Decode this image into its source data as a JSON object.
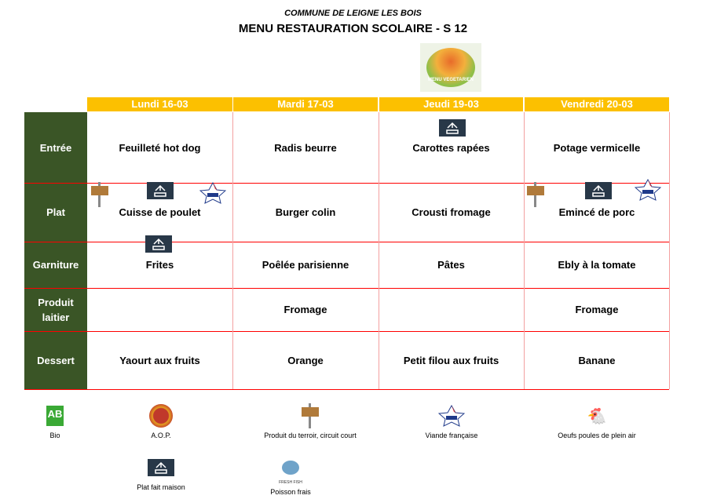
{
  "header": {
    "commune": "COMMUNE DE LEIGNE LES BOIS",
    "title": "MENU RESTAURATION SCOLAIRE -  S 12",
    "vegetarian_badge": "MENU VEGETARIEN"
  },
  "days": [
    "Lundi 16-03",
    "Mardi 17-03",
    "Jeudi 19-03",
    "Vendredi  20-03"
  ],
  "colors": {
    "day_header": "#fcc000",
    "row_header": "#3a5526",
    "grid": "#ff0000"
  },
  "rows": [
    {
      "label": "Entrée",
      "items": [
        "Feuilleté hot dog",
        "Radis beurre",
        "Carottes rapées",
        "Potage vermicelle"
      ]
    },
    {
      "label": "Plat",
      "items": [
        "Cuisse de poulet",
        "Burger colin",
        "Crousti fromage",
        "Emincé de porc"
      ]
    },
    {
      "label": "Garniture",
      "items": [
        "Frites",
        "Poêlée parisienne",
        "Pâtes",
        "Ebly à la tomate"
      ]
    },
    {
      "label": "Produit laitier",
      "items": [
        "",
        "Fromage",
        "",
        "Fromage"
      ]
    },
    {
      "label": "Dessert",
      "items": [
        "Yaourt aux fruits",
        "Orange",
        "Petit filou aux fruits",
        "Banane"
      ]
    }
  ],
  "legend": [
    {
      "icon": "bio-ab-logo",
      "label": "Bio"
    },
    {
      "icon": "aop-seal",
      "label": "A.O.P."
    },
    {
      "icon": "terroir-sign",
      "label": "Produit du terroir, circuit court"
    },
    {
      "icon": "viande-francaise-logo",
      "label": "Viande française"
    },
    {
      "icon": "hen-egg",
      "label": "Oeufs  poules de plein air"
    },
    {
      "icon": "fait-maison-logo",
      "label": "Plat fait maison"
    },
    {
      "icon": "fresh-fish-logo",
      "label": "Poisson frais",
      "sublabel": "FRESH FISH"
    }
  ]
}
